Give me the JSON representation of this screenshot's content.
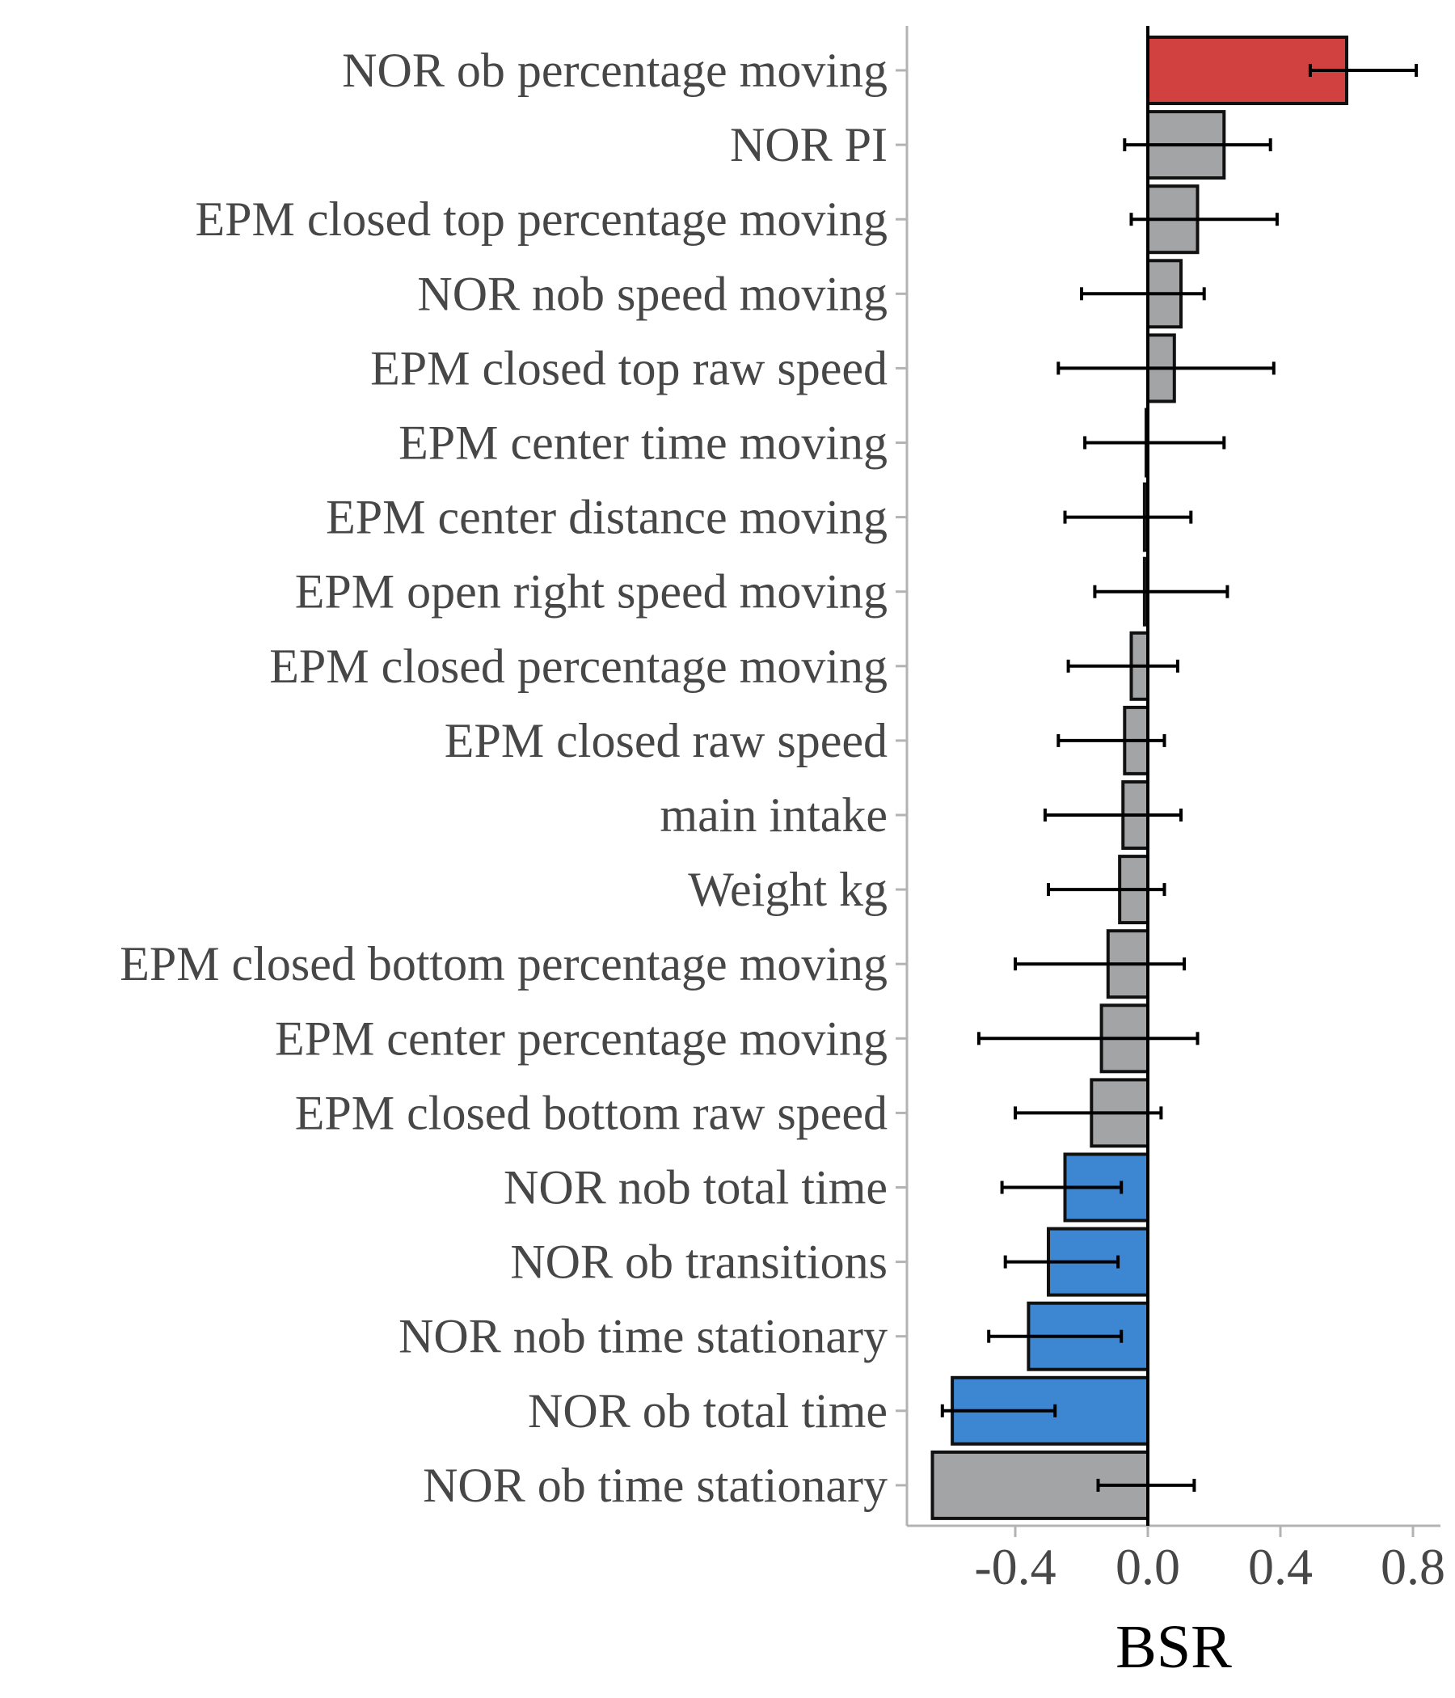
{
  "chart_data": {
    "type": "bar",
    "orientation": "horizontal",
    "xlabel": "BSR",
    "ylabel": "",
    "xlim": [
      -0.73,
      0.88
    ],
    "x_ticks": [
      -0.4,
      0.0,
      0.4,
      0.8
    ],
    "x_tick_labels": [
      "-0.4",
      "0.0",
      "0.4",
      "0.8"
    ],
    "grid": false,
    "legend": "none",
    "colors": {
      "positive_significant": "#d04140",
      "not_significant": "#a2a4a6",
      "negative_significant": "#3d86d2"
    },
    "categories": [
      "NOR ob percentage moving",
      "NOR PI",
      "EPM closed top percentage moving",
      "NOR nob speed moving",
      "EPM closed top raw speed",
      "EPM center time moving",
      "EPM center distance moving",
      "EPM open right speed moving",
      "EPM closed percentage moving",
      "EPM closed raw speed",
      "main intake",
      "Weight kg",
      "EPM closed bottom percentage moving",
      "EPM center percentage moving",
      "EPM closed bottom raw speed",
      "NOR nob total time",
      "NOR ob transitions",
      "NOR nob time stationary",
      "NOR ob total time",
      "NOR ob time stationary"
    ],
    "values": [
      0.6,
      0.23,
      0.15,
      0.1,
      0.08,
      -0.005,
      -0.01,
      -0.01,
      -0.05,
      -0.07,
      -0.075,
      -0.085,
      -0.12,
      -0.14,
      -0.17,
      -0.25,
      -0.3,
      -0.36,
      -0.59,
      -0.65
    ],
    "error_low": [
      0.49,
      -0.07,
      -0.05,
      -0.2,
      -0.27,
      -0.19,
      -0.25,
      -0.16,
      -0.24,
      -0.27,
      -0.31,
      -0.3,
      -0.4,
      -0.51,
      -0.4,
      -0.44,
      -0.43,
      -0.48,
      -0.62,
      -0.15
    ],
    "error_high": [
      0.81,
      0.37,
      0.39,
      0.17,
      0.38,
      0.23,
      0.13,
      0.24,
      0.09,
      0.05,
      0.1,
      0.05,
      0.11,
      0.15,
      0.04,
      -0.08,
      -0.09,
      -0.08,
      -0.28,
      0.14
    ],
    "bar_colors": [
      "#d04140",
      "#a2a4a6",
      "#a2a4a6",
      "#a2a4a6",
      "#a2a4a6",
      "#a2a4a6",
      "#a2a4a6",
      "#a2a4a6",
      "#a2a4a6",
      "#a2a4a6",
      "#a2a4a6",
      "#a2a4a6",
      "#a2a4a6",
      "#a2a4a6",
      "#a2a4a6",
      "#3d86d2",
      "#3d86d2",
      "#3d86d2",
      "#3d86d2",
      "#a2a4a6"
    ]
  }
}
